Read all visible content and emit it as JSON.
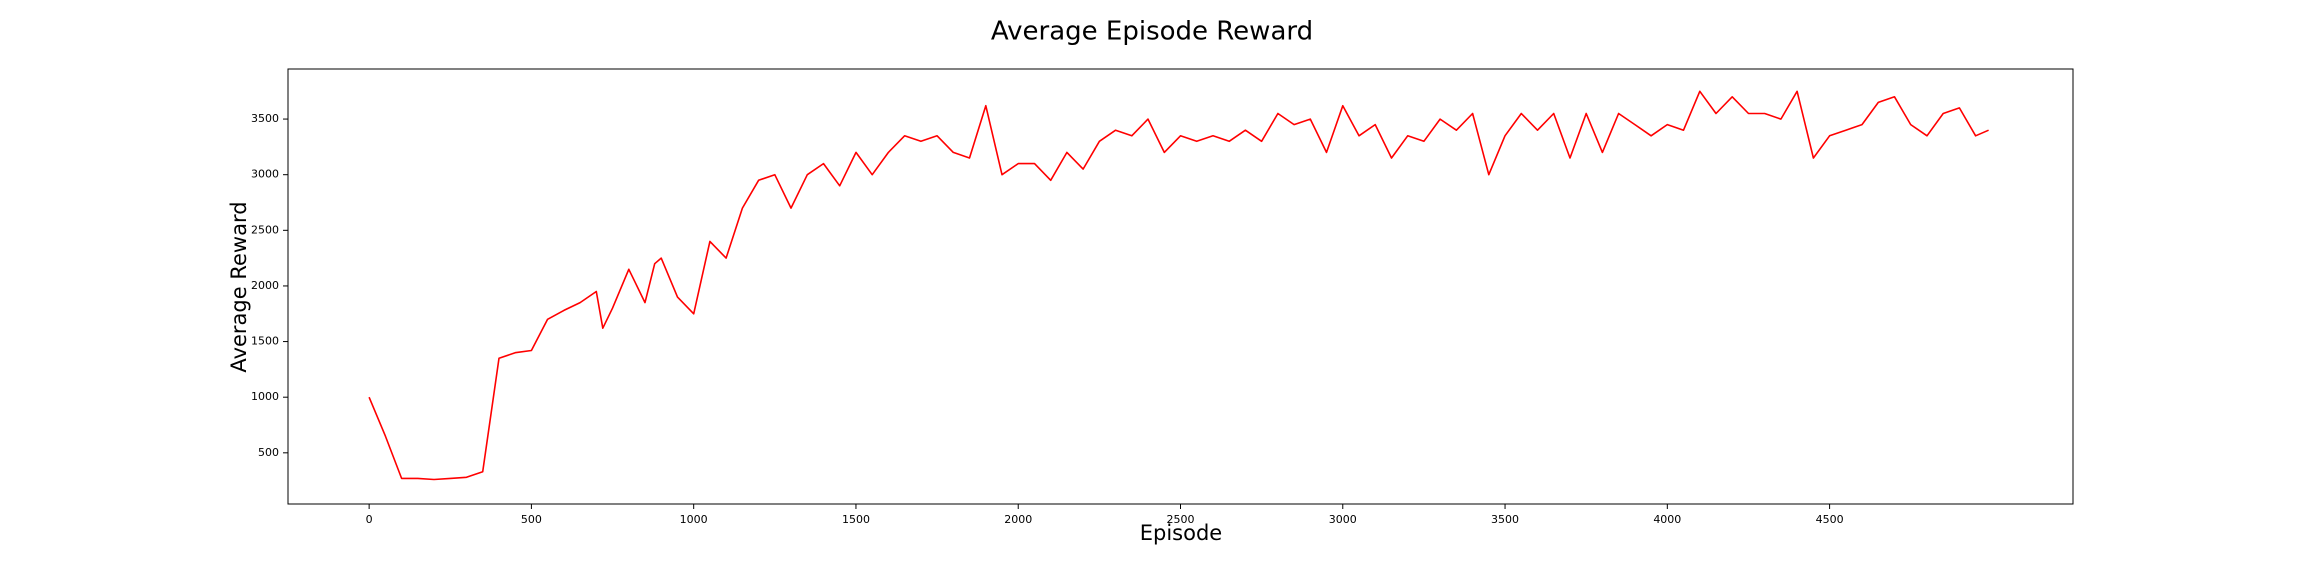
{
  "chart_data": {
    "type": "line",
    "title": "Average Episode Reward",
    "x_label": "Episode",
    "y_label": "Average Reward",
    "x": [
      0,
      50,
      100,
      150,
      200,
      250,
      300,
      350,
      400,
      450,
      500,
      550,
      600,
      650,
      700,
      720,
      750,
      800,
      850,
      880,
      900,
      950,
      1000,
      1050,
      1100,
      1150,
      1200,
      1250,
      1300,
      1350,
      1400,
      1450,
      1500,
      1550,
      1600,
      1650,
      1700,
      1750,
      1800,
      1850,
      1900,
      1950,
      2000,
      2050,
      2100,
      2150,
      2200,
      2250,
      2300,
      2350,
      2400,
      2450,
      2500,
      2550,
      2600,
      2650,
      2700,
      2750,
      2800,
      2850,
      2900,
      2950,
      3000,
      3050,
      3100,
      3150,
      3200,
      3250,
      3300,
      3350,
      3400,
      3450,
      3500,
      3550,
      3600,
      3650,
      3700,
      3750,
      3800,
      3850,
      3900,
      3950,
      4000,
      4050,
      4100,
      4150,
      4200,
      4250,
      4300,
      4350,
      4400,
      4450,
      4500,
      4550,
      4600,
      4650,
      4700,
      4750,
      4800,
      4850,
      4900,
      4950,
      4990
    ],
    "series": [
      {
        "name": "Average Reward",
        "color": "#ff0000",
        "values": [
          1000,
          650,
          270,
          270,
          260,
          270,
          280,
          330,
          1350,
          1400,
          1420,
          1700,
          1780,
          1850,
          1950,
          1620,
          1800,
          2150,
          1850,
          2200,
          2250,
          1900,
          1750,
          2400,
          2250,
          2700,
          2950,
          3000,
          2700,
          3000,
          3100,
          2900,
          3200,
          3000,
          3200,
          3350,
          3300,
          3350,
          3200,
          3150,
          3620,
          3000,
          3100,
          3100,
          2950,
          3200,
          3050,
          3300,
          3400,
          3350,
          3500,
          3200,
          3350,
          3300,
          3350,
          3300,
          3400,
          3300,
          3550,
          3450,
          3500,
          3200,
          3620,
          3350,
          3450,
          3150,
          3350,
          3300,
          3500,
          3400,
          3550,
          3000,
          3350,
          3550,
          3400,
          3550,
          3150,
          3550,
          3200,
          3550,
          3450,
          3350,
          3450,
          3400,
          3750,
          3550,
          3700,
          3550,
          3550,
          3500,
          3750,
          3150,
          3350,
          3400,
          3450,
          3650,
          3700,
          3450,
          3350,
          3550,
          3600,
          3350,
          3400
        ]
      }
    ],
    "xlim": [
      -250,
      5250
    ],
    "ylim": [
      40,
      3950
    ],
    "xticks": [
      0,
      500,
      1000,
      1500,
      2000,
      2500,
      3000,
      3500,
      4000,
      4500
    ],
    "yticks": [
      500,
      1000,
      1500,
      2000,
      2500,
      3000,
      3500
    ]
  }
}
